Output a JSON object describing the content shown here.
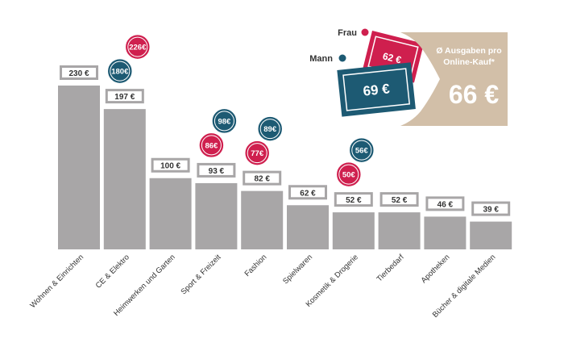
{
  "chart_data": {
    "type": "bar",
    "categories": [
      "Wohnen & Einrichten",
      "CE & Elektro",
      "Heimwerken und Garten",
      "Sport & Freizeit",
      "Fashion",
      "Spielwaren",
      "Kosmetik & Drogerie",
      "Tierbedarf",
      "Apotheken",
      "Bücher & digitale Medien"
    ],
    "values": [
      230,
      197,
      100,
      93,
      82,
      62,
      52,
      52,
      46,
      39
    ],
    "value_labels": [
      "230 €",
      "197 €",
      "100 €",
      "93 €",
      "82 €",
      "62 €",
      "52 €",
      "52 €",
      "46 €",
      "39 €"
    ],
    "gender": {
      "Mann": {
        "CE & Elektro": "180€",
        "Sport & Freizeit": "98€",
        "Fashion": "89€",
        "Kosmetik & Drogerie": "56€"
      },
      "Frau": {
        "CE & Elektro": "226€",
        "Sport & Freizeit": "86€",
        "Fashion": "77€",
        "Kosmetik & Drogerie": "50€"
      }
    },
    "ylim": [
      0,
      230
    ],
    "colors": {
      "bar": "#a8a6a7",
      "mann": "#1d5a73",
      "frau": "#cf1f4e",
      "panel": "#d2bfa8"
    }
  },
  "legend": {
    "frau": "Frau",
    "mann": "Mann",
    "frau_value": "62 €",
    "mann_value": "69 €"
  },
  "overall": {
    "label_line1": "Ø Ausgaben pro",
    "label_line2": "Online-Kauf*",
    "value": "66 €"
  }
}
